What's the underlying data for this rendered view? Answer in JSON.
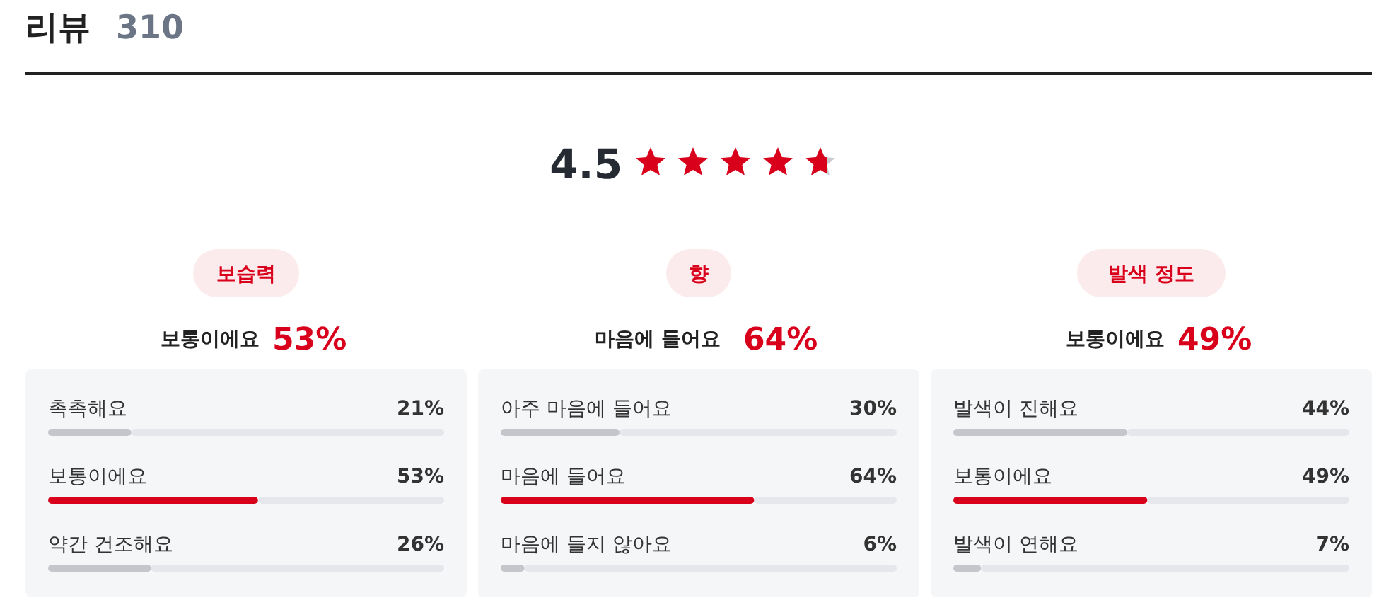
{
  "chart_data": [
    {
      "type": "other",
      "title": "리뷰",
      "annotations": [
        "310",
        "4.5"
      ]
    },
    {
      "type": "bar",
      "orientation": "horizontal",
      "title": "보습력",
      "subtitle": "보통이에요",
      "annotations": [
        "53%"
      ],
      "categories": [
        "촉촉해요",
        "보통이에요",
        "약간 건조해요"
      ],
      "values": [
        21,
        53,
        26
      ],
      "value_labels": [
        "21%",
        "53%",
        "26%"
      ],
      "colors": [
        "#c4c6cc",
        "#d9001b",
        "#c4c6cc"
      ],
      "xlim": [
        0,
        100
      ],
      "tick_labels": false
    },
    {
      "type": "bar",
      "orientation": "horizontal",
      "title": "향",
      "subtitle": "마음에 들어요",
      "annotations": [
        "64%"
      ],
      "categories": [
        "아주 마음에 들어요",
        "마음에 들어요",
        "마음에 들지 않아요"
      ],
      "values": [
        30,
        64,
        6
      ],
      "value_labels": [
        "30%",
        "64%",
        "6%"
      ],
      "colors": [
        "#c4c6cc",
        "#d9001b",
        "#c4c6cc"
      ],
      "xlim": [
        0,
        100
      ],
      "tick_labels": false
    },
    {
      "type": "bar",
      "orientation": "horizontal",
      "title": "발색 정도",
      "subtitle": "보통이에요",
      "annotations": [
        "49%"
      ],
      "categories": [
        "발색이 진해요",
        "보통이에요",
        "발색이 연해요"
      ],
      "values": [
        44,
        49,
        7
      ],
      "value_labels": [
        "44%",
        "49%",
        "7%"
      ],
      "colors": [
        "#c4c6cc",
        "#d9001b",
        "#c4c6cc"
      ],
      "xlim": [
        0,
        100
      ],
      "tick_labels": false
    }
  ]
}
